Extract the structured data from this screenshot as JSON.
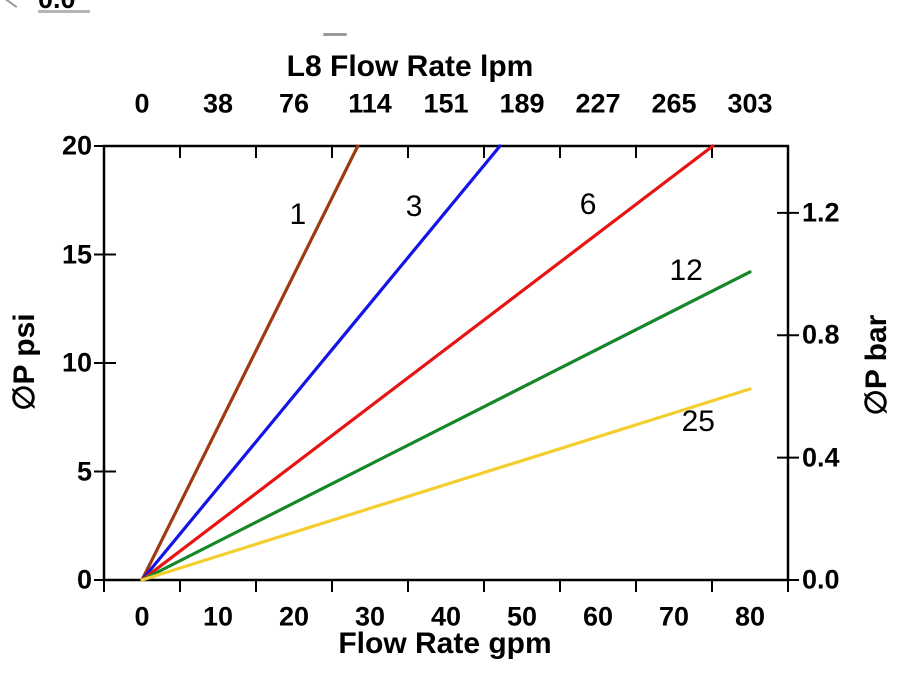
{
  "artifacts": {
    "clipped_text_top_left": "0.0"
  },
  "chart_data": {
    "type": "line",
    "title": "L8 Flow Rate lpm",
    "axes": {
      "top": {
        "label": "L8 Flow Rate lpm",
        "tick_labels": [
          "0",
          "38",
          "76",
          "114",
          "151",
          "189",
          "227",
          "265",
          "303"
        ],
        "units": "lpm"
      },
      "bottom": {
        "label": "Flow Rate gpm",
        "tick_labels": [
          "0",
          "10",
          "20",
          "30",
          "40",
          "50",
          "60",
          "70",
          "80"
        ],
        "units": "gpm",
        "axis_range_gpm": [
          -5,
          85
        ]
      },
      "left": {
        "label": "∅P psi",
        "tick_labels": [
          "0",
          "5",
          "10",
          "15",
          "20"
        ],
        "units": "psi",
        "axis_range_psi": [
          0,
          20
        ]
      },
      "right": {
        "label": "∅P bar",
        "tick_labels": [
          "0.0",
          "0.4",
          "0.8",
          "1.2"
        ],
        "units": "bar"
      }
    },
    "grid": false,
    "legend": "inline curve labels",
    "series": [
      {
        "label": "1",
        "color": "#9E3A10",
        "points_gpm_psi": [
          [
            0,
            0
          ],
          [
            28.4,
            20
          ]
        ],
        "label_at_gpm_psi": [
          20.5,
          16.8
        ]
      },
      {
        "label": "3",
        "color": "#1414E6",
        "points_gpm_psi": [
          [
            0,
            0
          ],
          [
            47.1,
            20
          ]
        ],
        "label_at_gpm_psi": [
          35.8,
          17.2
        ]
      },
      {
        "label": "6",
        "color": "#E81313",
        "points_gpm_psi": [
          [
            0,
            0
          ],
          [
            75.1,
            20
          ]
        ],
        "label_at_gpm_psi": [
          58.7,
          17.3
        ]
      },
      {
        "label": "12",
        "color": "#148728",
        "points_gpm_psi": [
          [
            0,
            0
          ],
          [
            80,
            14.2
          ]
        ],
        "label_at_gpm_psi": [
          71.6,
          14.25
        ]
      },
      {
        "label": "25",
        "color": "#F4CD2E",
        "points_gpm_psi": [
          [
            0,
            0
          ],
          [
            80,
            8.8
          ]
        ],
        "label_at_gpm_psi": [
          73.2,
          7.3
        ]
      }
    ],
    "tick_marks_gpm": [
      -5,
      5,
      15,
      25,
      35,
      45,
      55,
      65,
      75,
      85
    ],
    "tick_marks_psi": [
      0,
      5,
      10,
      15,
      20
    ],
    "tick_marks_bar": [
      0,
      0.4,
      0.8,
      1.2
    ]
  }
}
